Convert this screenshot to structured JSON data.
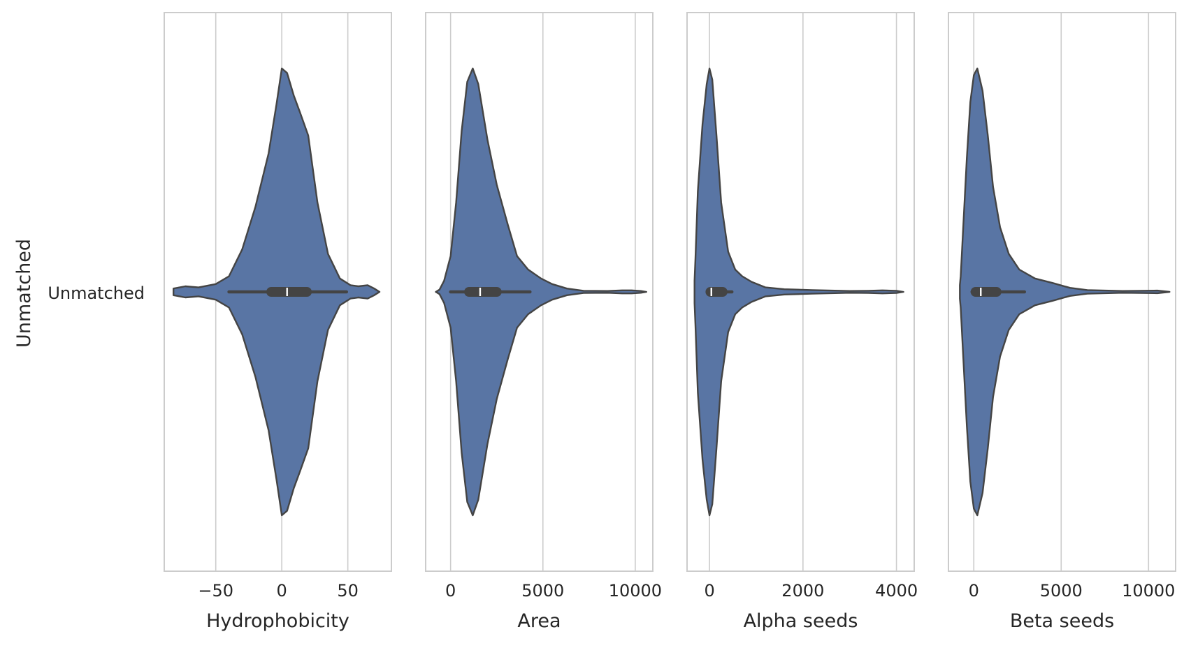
{
  "chart_data": {
    "type": "violin",
    "ylabel": "Unmatched",
    "category": "Unmatched",
    "grid": true,
    "color": "#5975a4",
    "edge_color": "#444444",
    "panels": [
      {
        "xlabel": "Hydrophobicity",
        "xlim": [
          -89,
          83
        ],
        "ticks": [
          -50,
          0,
          50
        ],
        "tick_labels": [
          "−50",
          "0",
          "50"
        ],
        "box": {
          "whisker_low": -40,
          "q1": -8,
          "median": 4,
          "q3": 19,
          "whisker_high": 49
        },
        "density": [
          [
            -82,
            0.015
          ],
          [
            -73,
            0.025
          ],
          [
            -63,
            0.02
          ],
          [
            -50,
            0.035
          ],
          [
            -40,
            0.07
          ],
          [
            -30,
            0.19
          ],
          [
            -20,
            0.38
          ],
          [
            -10,
            0.62
          ],
          [
            -4,
            0.84
          ],
          [
            0,
            1.0
          ],
          [
            4,
            0.98
          ],
          [
            9,
            0.88
          ],
          [
            14,
            0.8
          ],
          [
            20,
            0.7
          ],
          [
            27,
            0.4
          ],
          [
            35,
            0.17
          ],
          [
            44,
            0.06
          ],
          [
            52,
            0.03
          ],
          [
            58,
            0.025
          ],
          [
            65,
            0.03
          ],
          [
            70,
            0.015
          ],
          [
            74,
            0.0
          ]
        ]
      },
      {
        "xlabel": "Area",
        "xlim": [
          -1350,
          10950
        ],
        "ticks": [
          0,
          5000,
          10000
        ],
        "tick_labels": [
          "0",
          "5000",
          "10000"
        ],
        "box": {
          "whisker_low": 0,
          "q1": 1000,
          "median": 1600,
          "q3": 2500,
          "whisker_high": 4300
        },
        "density": [
          [
            -800,
            0.0
          ],
          [
            -600,
            0.01
          ],
          [
            -350,
            0.05
          ],
          [
            0,
            0.16
          ],
          [
            300,
            0.4
          ],
          [
            600,
            0.72
          ],
          [
            900,
            0.94
          ],
          [
            1200,
            1.0
          ],
          [
            1500,
            0.93
          ],
          [
            2000,
            0.68
          ],
          [
            2500,
            0.48
          ],
          [
            3100,
            0.3
          ],
          [
            3600,
            0.16
          ],
          [
            4200,
            0.1
          ],
          [
            4900,
            0.06
          ],
          [
            5500,
            0.035
          ],
          [
            6300,
            0.015
          ],
          [
            7200,
            0.005
          ],
          [
            8500,
            0.004
          ],
          [
            9300,
            0.007
          ],
          [
            9800,
            0.007
          ],
          [
            10300,
            0.004
          ],
          [
            10600,
            0.0
          ]
        ]
      },
      {
        "xlabel": "Alpha seeds",
        "xlim": [
          -480,
          4380
        ],
        "ticks": [
          0,
          2000,
          4000
        ],
        "tick_labels": [
          "0",
          "2000",
          "4000"
        ],
        "box": {
          "whisker_low": -40,
          "q1": 20,
          "median": 40,
          "q3": 280,
          "whisker_high": 480
        },
        "density": [
          [
            -320,
            0.05
          ],
          [
            -300,
            0.15
          ],
          [
            -250,
            0.45
          ],
          [
            -150,
            0.75
          ],
          [
            -60,
            0.93
          ],
          [
            0,
            1.0
          ],
          [
            60,
            0.95
          ],
          [
            150,
            0.7
          ],
          [
            250,
            0.4
          ],
          [
            400,
            0.18
          ],
          [
            550,
            0.1
          ],
          [
            700,
            0.07
          ],
          [
            900,
            0.045
          ],
          [
            1200,
            0.02
          ],
          [
            1600,
            0.012
          ],
          [
            2200,
            0.008
          ],
          [
            2600,
            0.006
          ],
          [
            3000,
            0.004
          ],
          [
            3400,
            0.005
          ],
          [
            3700,
            0.007
          ],
          [
            4000,
            0.005
          ],
          [
            4150,
            0.0
          ]
        ]
      },
      {
        "xlabel": "Beta seeds",
        "xlim": [
          -1450,
          11550
        ],
        "ticks": [
          0,
          5000,
          10000
        ],
        "tick_labels": [
          "0",
          "5000",
          "10000"
        ],
        "box": {
          "whisker_low": -100,
          "q1": 100,
          "median": 400,
          "q3": 1300,
          "whisker_high": 2900
        },
        "density": [
          [
            -800,
            0.03
          ],
          [
            -750,
            0.07
          ],
          [
            -600,
            0.3
          ],
          [
            -400,
            0.6
          ],
          [
            -200,
            0.85
          ],
          [
            0,
            0.97
          ],
          [
            200,
            1.0
          ],
          [
            500,
            0.9
          ],
          [
            800,
            0.7
          ],
          [
            1100,
            0.47
          ],
          [
            1500,
            0.29
          ],
          [
            2000,
            0.17
          ],
          [
            2600,
            0.1
          ],
          [
            3500,
            0.06
          ],
          [
            4500,
            0.04
          ],
          [
            5500,
            0.018
          ],
          [
            6500,
            0.008
          ],
          [
            7500,
            0.006
          ],
          [
            8500,
            0.004
          ],
          [
            9500,
            0.005
          ],
          [
            10500,
            0.006
          ],
          [
            11200,
            0.0
          ]
        ]
      }
    ]
  }
}
